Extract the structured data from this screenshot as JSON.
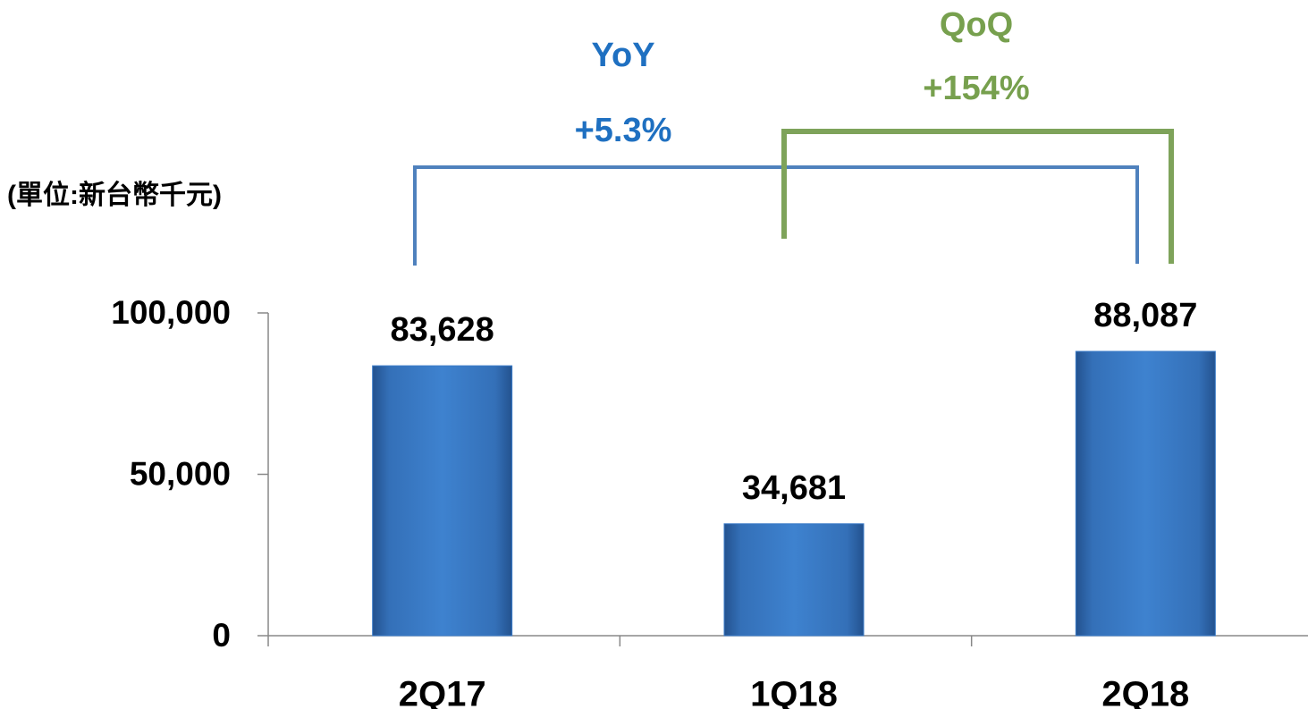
{
  "chart_data": {
    "type": "bar",
    "unit_label": "(單位:新台幣千元)",
    "categories": [
      "2Q17",
      "1Q18",
      "2Q18"
    ],
    "values": [
      83628,
      34681,
      88087
    ],
    "value_labels": [
      "83,628",
      "34,681",
      "88,087"
    ],
    "color": "#3a7bc8",
    "ylim": [
      0,
      100000
    ],
    "yticks": [
      0,
      {
        "value": 50000,
        "label": "50,000"
      },
      {
        "value": 100000,
        "label": "100,000"
      }
    ],
    "annotations": [
      {
        "label": "YoY",
        "text": "+5.3%",
        "color": "#1f70c1",
        "line_color": "#4f81bd"
      },
      {
        "label": "QoQ",
        "text": "+154%",
        "color": "#77a04e",
        "line_color": "#7ea35a"
      }
    ]
  }
}
